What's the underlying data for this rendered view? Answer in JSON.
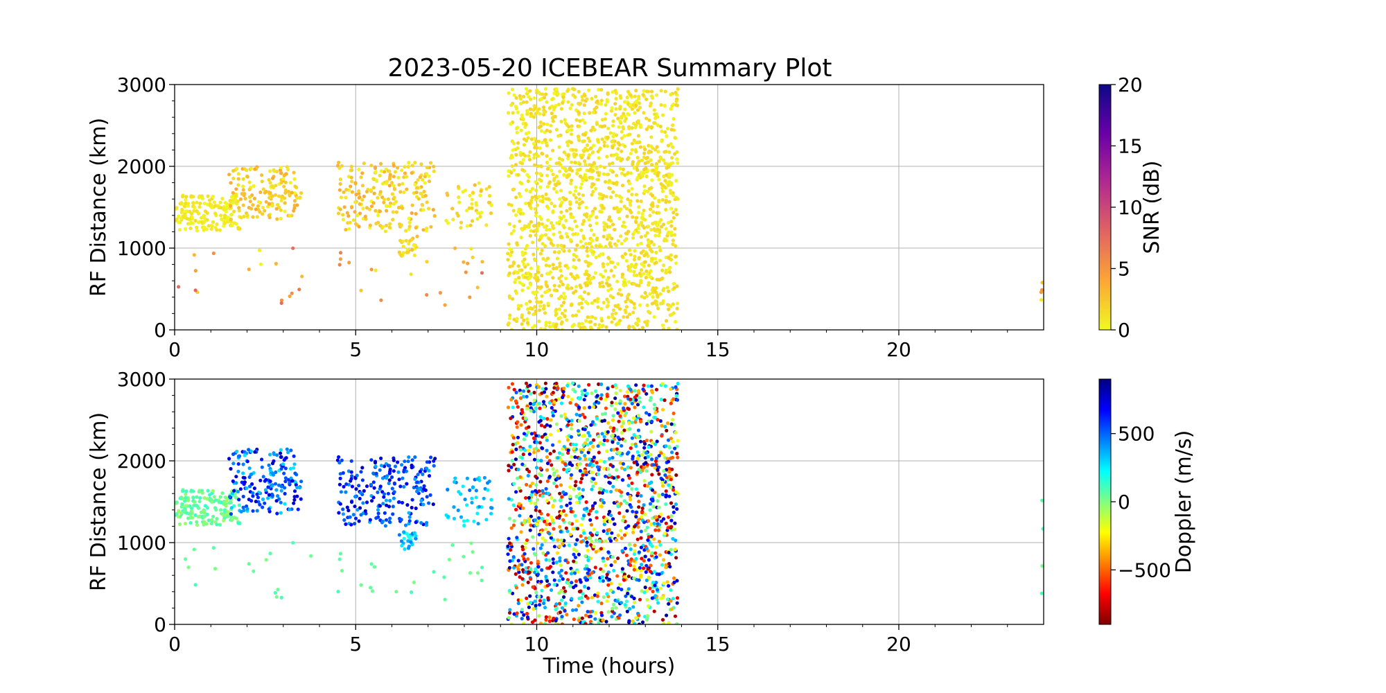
{
  "figure_title": "2023-05-20 ICEBEAR Summary Plot",
  "chart_data": [
    {
      "type": "scatter",
      "panel": "top",
      "title": "2023-05-20 ICEBEAR Summary Plot",
      "xlabel": "",
      "ylabel": "RF Distance (km)",
      "xlim": [
        0,
        24
      ],
      "ylim": [
        0,
        3000
      ],
      "xticks": [
        0,
        5,
        10,
        15,
        20
      ],
      "yticks": [
        0,
        1000,
        2000,
        3000
      ],
      "grid": true,
      "color_quantity": "SNR",
      "colorbar": {
        "label": "SNR (dB)",
        "range": [
          0,
          20
        ],
        "ticks": [
          0,
          5,
          10,
          15,
          20
        ],
        "colormap": "plasma_r",
        "colors": [
          "#f0f921",
          "#fca636",
          "#e16462",
          "#b12a90",
          "#6a00a8",
          "#0d0887"
        ]
      },
      "clusters": [
        {
          "t": [
            0.0,
            1.8
          ],
          "r": [
            1200,
            1650
          ],
          "density": 1.0,
          "value": [
            0,
            1.5
          ]
        },
        {
          "t": [
            1.5,
            3.5
          ],
          "r": [
            1350,
            2000
          ],
          "density": 0.7,
          "value": [
            0,
            4
          ]
        },
        {
          "t": [
            4.5,
            7.2
          ],
          "r": [
            1200,
            2050
          ],
          "density": 0.6,
          "value": [
            0,
            4
          ]
        },
        {
          "t": [
            6.2,
            6.7
          ],
          "r": [
            900,
            1150
          ],
          "density": 0.8,
          "value": [
            0,
            3
          ]
        },
        {
          "t": [
            7.5,
            8.8
          ],
          "r": [
            1200,
            1800
          ],
          "density": 0.35,
          "value": [
            0,
            3
          ]
        },
        {
          "t": [
            9.2,
            13.9
          ],
          "r": [
            0,
            2950
          ],
          "density": 0.9,
          "value": [
            0,
            2
          ]
        },
        {
          "t": [
            0.1,
            8.5
          ],
          "r": [
            300,
            1000
          ],
          "density": 0.04,
          "value": [
            0,
            8
          ]
        },
        {
          "t": [
            23.9,
            24.0
          ],
          "r": [
            300,
            1600
          ],
          "density": 0.2,
          "value": [
            0,
            5
          ]
        }
      ]
    },
    {
      "type": "scatter",
      "panel": "bottom",
      "title": "",
      "xlabel": "Time (hours)",
      "ylabel": "RF Distance (km)",
      "xlim": [
        0,
        24
      ],
      "ylim": [
        0,
        3000
      ],
      "xticks": [
        0,
        5,
        10,
        15,
        20
      ],
      "yticks": [
        0,
        1000,
        2000,
        3000
      ],
      "grid": true,
      "color_quantity": "Doppler",
      "colorbar": {
        "label": "Doppler (m/s)",
        "range": [
          -900,
          900
        ],
        "ticks": [
          -500,
          0,
          500
        ],
        "tick_labels": [
          "−500",
          "0",
          "500"
        ],
        "colormap": "jet_r",
        "colors": [
          "#800000",
          "#ff0000",
          "#ff8000",
          "#ffff00",
          "#80ff80",
          "#00ffff",
          "#0080ff",
          "#0000ff",
          "#000080"
        ]
      },
      "clusters": [
        {
          "t": [
            0.0,
            1.8
          ],
          "r": [
            1200,
            1650
          ],
          "density": 1.0,
          "value": [
            -50,
            150
          ]
        },
        {
          "t": [
            1.5,
            3.5
          ],
          "r": [
            1350,
            2150
          ],
          "density": 0.7,
          "value": [
            250,
            800
          ]
        },
        {
          "t": [
            4.5,
            7.2
          ],
          "r": [
            1200,
            2050
          ],
          "density": 0.6,
          "value": [
            350,
            800
          ]
        },
        {
          "t": [
            6.2,
            6.7
          ],
          "r": [
            900,
            1150
          ],
          "density": 0.8,
          "value": [
            150,
            500
          ]
        },
        {
          "t": [
            7.5,
            8.8
          ],
          "r": [
            1200,
            1800
          ],
          "density": 0.35,
          "value": [
            200,
            500
          ]
        },
        {
          "t": [
            9.2,
            13.9
          ],
          "r": [
            0,
            2950
          ],
          "density": 0.9,
          "value": [
            -900,
            900
          ]
        },
        {
          "t": [
            0.1,
            8.5
          ],
          "r": [
            300,
            1000
          ],
          "density": 0.04,
          "value": [
            0,
            100
          ]
        },
        {
          "t": [
            23.9,
            24.0
          ],
          "r": [
            300,
            1600
          ],
          "density": 0.2,
          "value": [
            0,
            100
          ]
        }
      ]
    }
  ]
}
